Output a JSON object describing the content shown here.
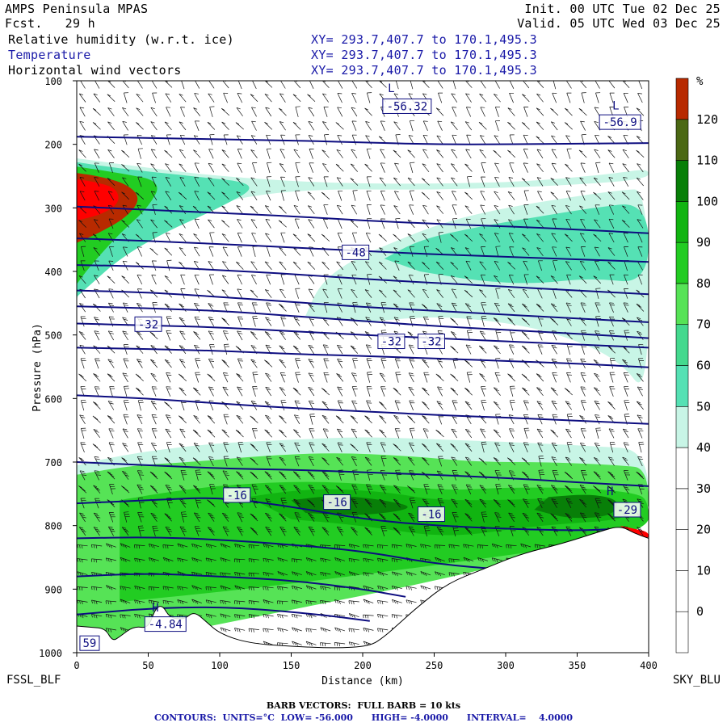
{
  "header": {
    "model": "AMPS Peninsula MPAS",
    "fcst_label": "Fcst.",
    "fcst_value": "29 h",
    "init": "Init. 00 UTC Tue 02 Dec 25",
    "valid": "Valid. 05 UTC Wed 03 Dec 25",
    "fields": [
      {
        "name": "Relative humidity (w.r.t. ice)",
        "xy": "XY= 293.7,407.7 to 170.1,495.3"
      },
      {
        "name": "Temperature",
        "xy": "XY= 293.7,407.7 to 170.1,495.3"
      },
      {
        "name": "Horizontal wind vectors",
        "xy": "XY= 293.7,407.7 to 170.1,495.3"
      }
    ]
  },
  "footer": {
    "barbs": "BARB VECTORS:  FULL BARB = 10 kts",
    "contours": "CONTOURS:  UNITS=°C  LOW= -56.000      HIGH= -4.0000      INTERVAL=    4.0000"
  },
  "colors": {
    "temp_contour": "#0d0d80",
    "rh": [
      "#ffffff",
      "#ffffff",
      "#ffffff",
      "#ffffff",
      "#ffffff",
      "#c8f5e6",
      "#55e1b4",
      "#44d98e",
      "#56e356",
      "#22cc22",
      "#11b411",
      "#087f08",
      "#4b6814",
      "#b82a00",
      "#ff0000"
    ]
  },
  "chart_data": {
    "type": "cross-section",
    "x_start_label": "FSSL_BLF",
    "x_end_label": "SKY_BLU",
    "xlabel": "Distance (km)",
    "ylabel": "Pressure (hPa)",
    "xlim": [
      0,
      400
    ],
    "ylim": [
      100,
      1000
    ],
    "x_ticks": [
      0,
      50,
      100,
      150,
      200,
      250,
      300,
      350,
      400
    ],
    "y_ticks": [
      100,
      200,
      300,
      400,
      500,
      600,
      700,
      800,
      900,
      1000
    ],
    "colorbar": {
      "unit": "%",
      "bounds": [
        -10,
        0,
        10,
        20,
        30,
        40,
        50,
        60,
        70,
        80,
        90,
        100,
        110,
        120,
        130
      ],
      "labels": [
        0,
        10,
        20,
        30,
        40,
        50,
        60,
        70,
        80,
        90,
        100,
        110,
        120
      ]
    },
    "terrain_surface": [
      [
        0,
        958
      ],
      [
        10,
        960
      ],
      [
        20,
        962
      ],
      [
        25,
        982
      ],
      [
        30,
        975
      ],
      [
        40,
        958
      ],
      [
        50,
        962
      ],
      [
        55,
        930
      ],
      [
        60,
        925
      ],
      [
        65,
        945
      ],
      [
        75,
        948
      ],
      [
        82,
        935
      ],
      [
        90,
        950
      ],
      [
        100,
        970
      ],
      [
        120,
        985
      ],
      [
        150,
        990
      ],
      [
        180,
        993
      ],
      [
        205,
        990
      ],
      [
        215,
        975
      ],
      [
        225,
        955
      ],
      [
        240,
        925
      ],
      [
        260,
        890
      ],
      [
        285,
        868
      ],
      [
        310,
        845
      ],
      [
        340,
        828
      ],
      [
        365,
        810
      ],
      [
        380,
        800
      ],
      [
        390,
        812
      ],
      [
        400,
        820
      ]
    ],
    "temperature_contours": [
      {
        "value": -56,
        "points": [
          [
            0,
            188
          ],
          [
            50,
            190
          ],
          [
            100,
            192
          ],
          [
            150,
            194
          ],
          [
            200,
            197
          ],
          [
            250,
            200
          ],
          [
            300,
            200
          ],
          [
            350,
            199
          ],
          [
            400,
            198
          ]
        ]
      },
      {
        "value": -52,
        "points": [
          [
            0,
            298
          ],
          [
            50,
            303
          ],
          [
            100,
            308
          ],
          [
            150,
            313
          ],
          [
            200,
            320
          ],
          [
            250,
            325
          ],
          [
            300,
            329
          ],
          [
            350,
            334
          ],
          [
            400,
            340
          ]
        ]
      },
      {
        "value": -48,
        "points": [
          [
            0,
            348
          ],
          [
            50,
            352
          ],
          [
            100,
            357
          ],
          [
            150,
            362
          ],
          [
            200,
            368
          ],
          [
            250,
            373
          ],
          [
            300,
            377
          ],
          [
            350,
            381
          ],
          [
            400,
            385
          ]
        ]
      },
      {
        "value": -44,
        "points": [
          [
            0,
            390
          ],
          [
            50,
            392
          ],
          [
            100,
            398
          ],
          [
            150,
            404
          ],
          [
            200,
            412
          ],
          [
            250,
            418
          ],
          [
            300,
            424
          ],
          [
            350,
            430
          ],
          [
            400,
            436
          ]
        ]
      },
      {
        "value": -40,
        "points": [
          [
            0,
            430
          ],
          [
            50,
            433
          ],
          [
            100,
            440
          ],
          [
            150,
            448
          ],
          [
            200,
            456
          ],
          [
            250,
            462
          ],
          [
            300,
            468
          ],
          [
            350,
            474
          ],
          [
            400,
            480
          ]
        ]
      },
      {
        "value": -36,
        "points": [
          [
            0,
            455
          ],
          [
            50,
            458
          ],
          [
            100,
            462
          ],
          [
            150,
            470
          ],
          [
            200,
            478
          ],
          [
            250,
            486
          ],
          [
            300,
            492
          ],
          [
            350,
            498
          ],
          [
            400,
            505
          ]
        ]
      },
      {
        "value": -32,
        "points": [
          [
            0,
            482
          ],
          [
            50,
            485
          ],
          [
            100,
            488
          ],
          [
            150,
            494
          ],
          [
            200,
            500
          ],
          [
            250,
            505
          ],
          [
            300,
            510
          ],
          [
            350,
            515
          ],
          [
            400,
            520
          ]
        ]
      },
      {
        "value": -28,
        "points": [
          [
            0,
            520
          ],
          [
            50,
            522
          ],
          [
            100,
            525
          ],
          [
            150,
            530
          ],
          [
            200,
            533
          ],
          [
            250,
            537
          ],
          [
            300,
            541
          ],
          [
            350,
            545
          ],
          [
            400,
            551
          ]
        ]
      },
      {
        "value": -24,
        "points": [
          [
            0,
            595
          ],
          [
            50,
            600
          ],
          [
            100,
            608
          ],
          [
            150,
            615
          ],
          [
            200,
            620
          ],
          [
            250,
            626
          ],
          [
            300,
            630
          ],
          [
            350,
            635
          ],
          [
            400,
            640
          ]
        ]
      },
      {
        "value": -20,
        "points": [
          [
            0,
            700
          ],
          [
            50,
            705
          ],
          [
            100,
            710
          ],
          [
            150,
            712
          ],
          [
            200,
            716
          ],
          [
            250,
            720
          ],
          [
            300,
            725
          ],
          [
            350,
            732
          ],
          [
            400,
            738
          ]
        ]
      },
      {
        "value": -16,
        "points": [
          [
            0,
            765
          ],
          [
            50,
            760
          ],
          [
            100,
            755
          ],
          [
            150,
            770
          ],
          [
            200,
            790
          ],
          [
            250,
            800
          ],
          [
            300,
            805
          ],
          [
            350,
            808
          ],
          [
            380,
            805
          ]
        ]
      },
      {
        "value": -12,
        "points": [
          [
            0,
            820
          ],
          [
            50,
            818
          ],
          [
            100,
            822
          ],
          [
            150,
            830
          ],
          [
            200,
            840
          ],
          [
            250,
            860
          ],
          [
            300,
            870
          ],
          [
            330,
            868
          ]
        ]
      },
      {
        "value": -8,
        "points": [
          [
            0,
            880
          ],
          [
            50,
            875
          ],
          [
            100,
            880
          ],
          [
            150,
            886
          ],
          [
            200,
            900
          ],
          [
            230,
            912
          ]
        ]
      },
      {
        "value": -4,
        "points": [
          [
            0,
            940
          ],
          [
            40,
            932
          ],
          [
            80,
            928
          ],
          [
            120,
            930
          ],
          [
            170,
            940
          ],
          [
            205,
            950
          ]
        ]
      }
    ],
    "contour_labels": [
      {
        "text": "-48",
        "x": 195,
        "y": 370
      },
      {
        "text": "-32",
        "x": 50,
        "y": 483
      },
      {
        "text": "-32",
        "x": 220,
        "y": 510
      },
      {
        "text": "-32",
        "x": 248,
        "y": 510
      },
      {
        "text": "-16",
        "x": 112,
        "y": 752
      },
      {
        "text": "-16",
        "x": 182,
        "y": 763
      },
      {
        "text": "-16",
        "x": 248,
        "y": 782
      },
      {
        "text": "-56.32",
        "x": 231,
        "y": 140
      },
      {
        "text": "-56.9",
        "x": 380,
        "y": 165
      },
      {
        "text": "-4.84",
        "x": 62,
        "y": 955
      },
      {
        "text": "-29",
        "x": 385,
        "y": 775
      },
      {
        "text": "59",
        "x": 9,
        "y": 985
      }
    ],
    "extrema_markers": [
      {
        "text": "L",
        "x": 220,
        "y": 118
      },
      {
        "text": "L",
        "x": 377,
        "y": 145
      },
      {
        "text": "H",
        "x": 55,
        "y": 935
      },
      {
        "text": "H",
        "x": 373,
        "y": 752
      }
    ]
  }
}
